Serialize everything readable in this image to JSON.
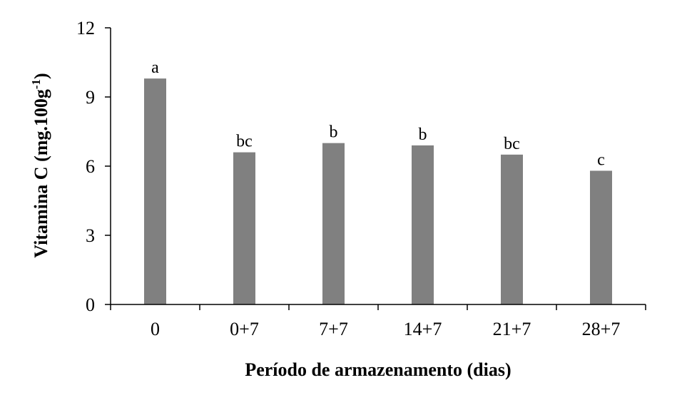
{
  "chart_data": {
    "type": "bar",
    "title": "",
    "xlabel": "Período de armazenamento (dias)",
    "ylabel": "Vitamina C (mg.100g",
    "ylabel_sup": "-1",
    "ylabel_end": ")",
    "categories": [
      "0",
      "0+7",
      "7+7",
      "14+7",
      "21+7",
      "28+7"
    ],
    "values": [
      9.8,
      6.6,
      7.0,
      6.9,
      6.5,
      5.8
    ],
    "data_labels": [
      "a",
      "bc",
      "b",
      "b",
      "bc",
      "c"
    ],
    "ylim": [
      0,
      12
    ],
    "yticks": [
      0,
      3,
      6,
      9,
      12
    ],
    "grid": false,
    "legend": false,
    "bar_color": "#808080"
  }
}
